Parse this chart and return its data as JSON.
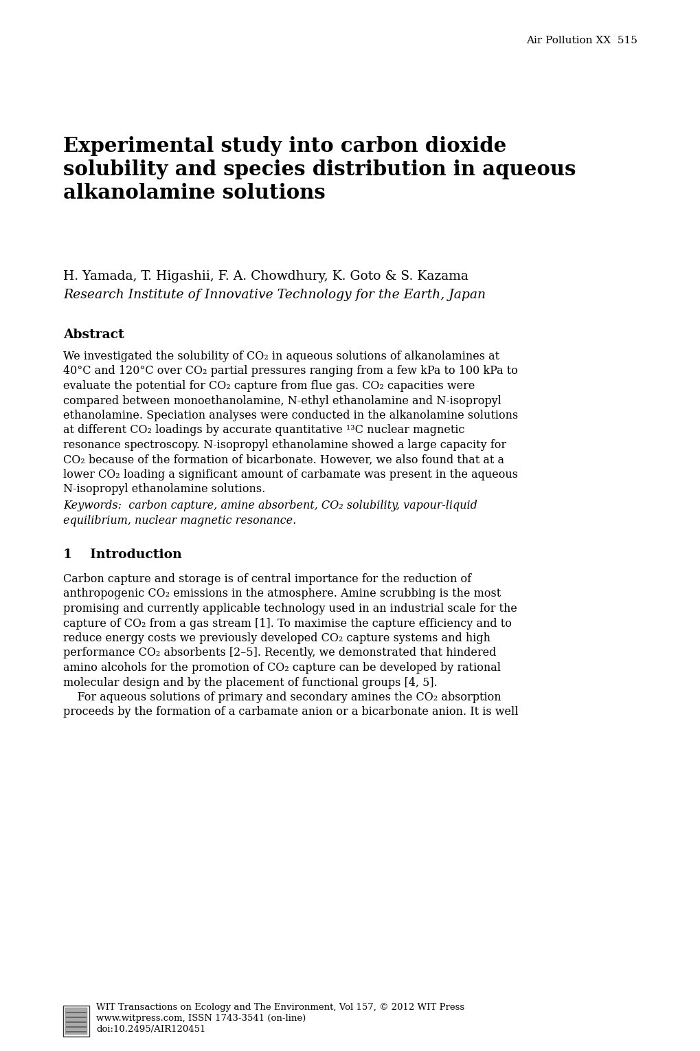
{
  "page_header": "Air Pollution XX  515",
  "title": "Experimental study into carbon dioxide\nsolubility and species distribution in aqueous\nalkanolamine solutions",
  "authors": "H. Yamada, T. Higashii, F. A. Chowdhury, K. Goto & S. Kazama",
  "affiliation": "Research Institute of Innovative Technology for the Earth, Japan",
  "abstract_heading": "Abstract",
  "abstract_lines": [
    "We investigated the solubility of CO₂ in aqueous solutions of alkanolamines at",
    "40°C and 120°C over CO₂ partial pressures ranging from a few kPa to 100 kPa to",
    "evaluate the potential for CO₂ capture from flue gas. CO₂ capacities were",
    "compared between monoethanolamine, N-ethyl ethanolamine and N-isopropyl",
    "ethanolamine. Speciation analyses were conducted in the alkanolamine solutions",
    "at different CO₂ loadings by accurate quantitative ¹³C nuclear magnetic",
    "resonance spectroscopy. N-isopropyl ethanolamine showed a large capacity for",
    "CO₂ because of the formation of bicarbonate. However, we also found that at a",
    "lower CO₂ loading a significant amount of carbamate was present in the aqueous",
    "N-isopropyl ethanolamine solutions."
  ],
  "keywords_lines": [
    "Keywords:  carbon capture, amine absorbent, CO₂ solubility, vapour-liquid",
    "equilibrium, nuclear magnetic resonance."
  ],
  "section1_heading": "1    Introduction",
  "intro_lines": [
    "Carbon capture and storage is of central importance for the reduction of",
    "anthropogenic CO₂ emissions in the atmosphere. Amine scrubbing is the most",
    "promising and currently applicable technology used in an industrial scale for the",
    "capture of CO₂ from a gas stream [1]. To maximise the capture efficiency and to",
    "reduce energy costs we previously developed CO₂ capture systems and high",
    "performance CO₂ absorbents [2–5]. Recently, we demonstrated that hindered",
    "amino alcohols for the promotion of CO₂ capture can be developed by rational",
    "molecular design and by the placement of functional groups [4, 5].",
    "    For aqueous solutions of primary and secondary amines the CO₂ absorption",
    "proceeds by the formation of a carbamate anion or a bicarbonate anion. It is well"
  ],
  "footer_line1": "WIT Transactions on Ecology and The Environment, Vol 157, © 2012 WIT Press",
  "footer_line2": "www.witpress.com, ISSN 1743-3541 (on-line)",
  "footer_line3": "doi:10.2495/AIR120451",
  "bg_color": "#ffffff",
  "text_color": "#000000"
}
